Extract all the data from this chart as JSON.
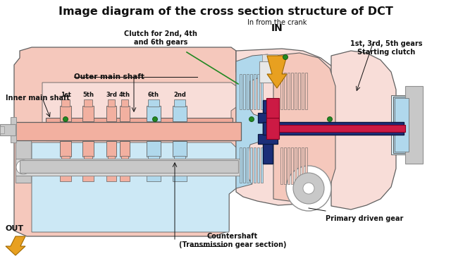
{
  "title": "Image diagram of the cross section structure of DCT",
  "title_fontsize": 11.5,
  "labels": {
    "inner_main_shaft": "Inner main shaft",
    "outer_main_shaft": "Outer main shaft",
    "clutch_2nd_4th_6th": "Clutch for 2nd, 4th\nand 6th gears",
    "in_from_crank": "In from the crank",
    "IN": "IN",
    "gears_1st": "1st",
    "gears_2nd": "2nd",
    "gears_3rd": "3rd",
    "gears_4th": "4th",
    "gears_5th": "5th",
    "gears_6th": "6th",
    "starting_clutch": "1st, 3rd, 5th gears\nStarting clutch",
    "primary_driven_gear": "Primary driven gear",
    "countershaft": "Countershaft\n(Transmission gear section)",
    "OUT": "OUT"
  },
  "colors": {
    "salmon": "#F2B0A0",
    "light_blue": "#B0D8EC",
    "dark_blue": "#1C2E78",
    "pink_red": "#CC1A44",
    "light_gray": "#C8C8C8",
    "mid_gray": "#909090",
    "outline": "#606060",
    "green_dot": "#228822",
    "arrow_gold": "#E8A020",
    "text_dark": "#111111",
    "white": "#FFFFFF",
    "light_salmon": "#F5C8BC",
    "very_light_blue": "#CCE8F5",
    "pale_salmon": "#F8DDD8",
    "pale_blue": "#D8EEF8",
    "blue_grad": "#4060A0"
  }
}
